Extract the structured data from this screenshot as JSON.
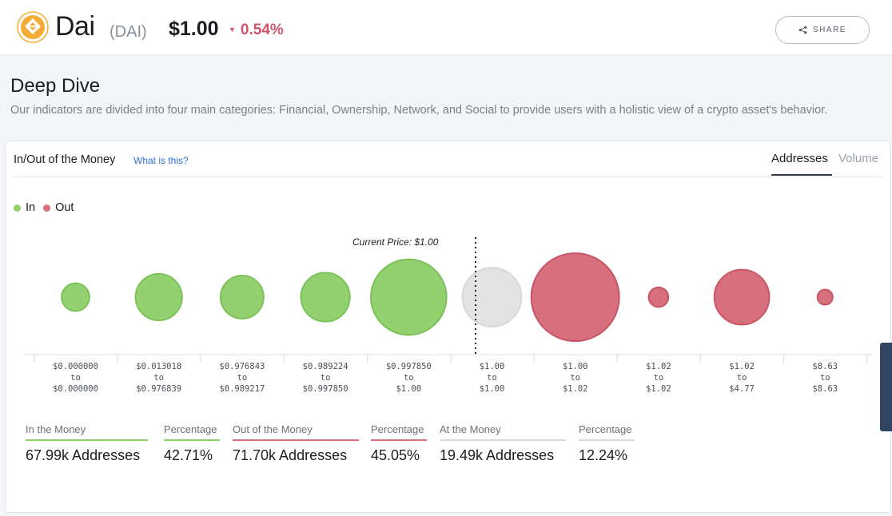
{
  "header": {
    "name": "Dai",
    "symbol": "(DAI)",
    "price": "$1.00",
    "change": "0.54%",
    "change_direction": "down",
    "share_label": "SHARE",
    "logo_icon": "dai-logo-icon",
    "colors": {
      "logo": "#f5ac37",
      "change_negative": "#d0546a"
    }
  },
  "deep_dive": {
    "title": "Deep Dive",
    "description": "Our indicators are divided into four main categories: Financial, Ownership, Network, and Social to provide users with a holistic view of a crypto asset's behavior."
  },
  "iomap": {
    "title": "In/Out of the Money",
    "what_is_this": "What is this?",
    "tabs": [
      {
        "label": "Addresses",
        "active": true
      },
      {
        "label": "Volume",
        "active": false
      }
    ],
    "legend": {
      "in": "In",
      "out": "Out"
    },
    "current_price_label": "Current Price: $1.00",
    "summary": [
      {
        "label": "In the Money",
        "value": "67.99k Addresses",
        "color": "#8ecf6c"
      },
      {
        "label": "Percentage",
        "value": "42.71%",
        "color": "#8ecf6c"
      },
      {
        "label": "Out of the Money",
        "value": "71.70k Addresses",
        "color": "#d7707e"
      },
      {
        "label": "Percentage",
        "value": "45.05%",
        "color": "#d7707e"
      },
      {
        "label": "At the Money",
        "value": "19.49k Addresses",
        "color": "#d6d9dd"
      },
      {
        "label": "Percentage",
        "value": "12.24%",
        "color": "#d6d9dd"
      }
    ]
  },
  "chart_data": {
    "type": "bubble",
    "title": "",
    "value_encoding": "bubble area represents number of addresses (relative)",
    "current_price": 1.0,
    "current_price_after_bin_index": 4,
    "colors": {
      "in": "#92d070",
      "out": "#d6707c",
      "at": "#e3e3e3"
    },
    "bins": [
      {
        "from": "$0.000000",
        "to": "$0.000000",
        "status": "in",
        "relative_size": 0.1
      },
      {
        "from": "$0.013018",
        "to": "$0.976839",
        "status": "in",
        "relative_size": 0.28
      },
      {
        "from": "$0.976843",
        "to": "$0.989217",
        "status": "in",
        "relative_size": 0.24
      },
      {
        "from": "$0.989224",
        "to": "$0.997850",
        "status": "in",
        "relative_size": 0.31
      },
      {
        "from": "$0.997850",
        "to": "$1.00",
        "status": "in",
        "relative_size": 0.74
      },
      {
        "from": "$1.00",
        "to": "$1.00",
        "status": "at",
        "relative_size": 0.45
      },
      {
        "from": "$1.00",
        "to": "$1.02",
        "status": "out",
        "relative_size": 1.0
      },
      {
        "from": "$1.02",
        "to": "$1.02",
        "status": "out",
        "relative_size": 0.05
      },
      {
        "from": "$1.02",
        "to": "$4.77",
        "status": "out",
        "relative_size": 0.39
      },
      {
        "from": "$8.63",
        "to": "$8.63",
        "status": "out",
        "relative_size": 0.03
      }
    ]
  }
}
